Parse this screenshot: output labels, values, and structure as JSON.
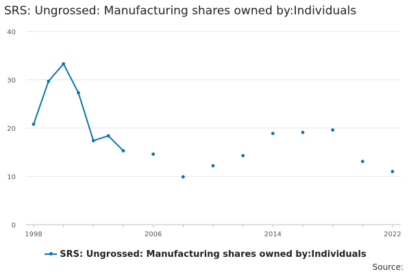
{
  "chart_data": {
    "type": "line",
    "title": "SRS: Ungrossed: Manufacturing shares owned by:Individuals",
    "xlabel": "",
    "ylabel": "",
    "xlim": [
      1998,
      2022
    ],
    "ylim": [
      0,
      40
    ],
    "x_ticks": [
      1998,
      2006,
      2014,
      2022
    ],
    "y_ticks": [
      0,
      10,
      20,
      30,
      40
    ],
    "grid": true,
    "legend_position": "bottom",
    "series": [
      {
        "name": "SRS: Ungrossed: Manufacturing shares owned by:Individuals",
        "color": "#0075b9",
        "connected_points": [
          {
            "x": 1998,
            "y": 20.8
          },
          {
            "x": 1999,
            "y": 29.7
          },
          {
            "x": 2000,
            "y": 33.3
          },
          {
            "x": 2001,
            "y": 27.3
          },
          {
            "x": 2002,
            "y": 17.4
          },
          {
            "x": 2003,
            "y": 18.4
          },
          {
            "x": 2004,
            "y": 15.3
          }
        ],
        "isolated_points": [
          {
            "x": 2006,
            "y": 14.6
          },
          {
            "x": 2008,
            "y": 9.9
          },
          {
            "x": 2010,
            "y": 12.2
          },
          {
            "x": 2012,
            "y": 14.3
          },
          {
            "x": 2014,
            "y": 18.9
          },
          {
            "x": 2016,
            "y": 19.1
          },
          {
            "x": 2018,
            "y": 19.6
          },
          {
            "x": 2020,
            "y": 13.1
          },
          {
            "x": 2022,
            "y": 11.0
          }
        ]
      }
    ]
  },
  "legend": {
    "label": "SRS: Ungrossed: Manufacturing shares owned by:Individuals"
  },
  "footer": {
    "source_label": "Source:"
  }
}
